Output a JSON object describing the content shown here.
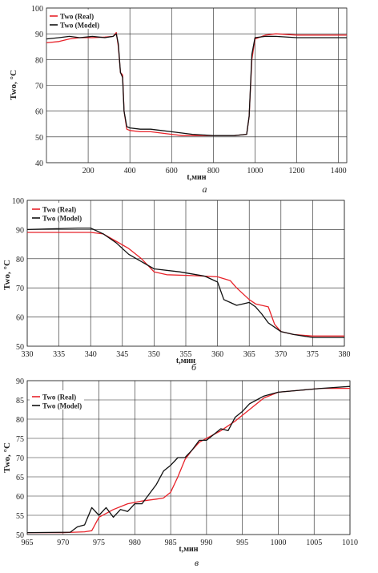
{
  "chart_data": [
    {
      "type": "line",
      "panel_label": "а",
      "xlabel": "t,мин",
      "ylabel": "Two, °C",
      "xlim": [
        0,
        1440
      ],
      "ylim": [
        40,
        100
      ],
      "xticks": [
        "200",
        "400",
        "600",
        "800",
        "1000",
        "1200",
        "1400"
      ],
      "yticks": [
        "40",
        "50",
        "60",
        "70",
        "80",
        "90",
        "100"
      ],
      "legend": "top-left",
      "series": [
        {
          "name": "Two (Real)",
          "color": "#e8232a",
          "x": [
            0,
            60,
            110,
            160,
            220,
            280,
            320,
            335,
            345,
            355,
            365,
            372,
            385,
            400,
            450,
            500,
            550,
            600,
            650,
            700,
            800,
            900,
            960,
            972,
            985,
            1000,
            1050,
            1100,
            1200,
            1300,
            1440
          ],
          "y": [
            86.5,
            87,
            88,
            88.5,
            88.5,
            88.7,
            89,
            90.5,
            85,
            75,
            74,
            60,
            53,
            52.5,
            52,
            52,
            51.5,
            51,
            50.5,
            50.5,
            50.5,
            50.5,
            51,
            58,
            80,
            88,
            89.5,
            90,
            89.5,
            89.5,
            89.5
          ]
        },
        {
          "name": "Two (Model)",
          "color": "#111111",
          "x": [
            0,
            60,
            110,
            160,
            220,
            280,
            320,
            335,
            345,
            355,
            365,
            372,
            385,
            400,
            450,
            500,
            550,
            600,
            650,
            700,
            800,
            900,
            960,
            972,
            985,
            1000,
            1050,
            1100,
            1200,
            1300,
            1440
          ],
          "y": [
            88,
            88.5,
            89,
            88.5,
            89,
            88.5,
            89,
            90,
            86,
            75,
            73,
            60,
            54,
            53.5,
            53,
            53,
            52.5,
            52,
            51.5,
            51,
            50.5,
            50.5,
            51,
            58,
            82,
            88.5,
            89,
            89,
            88.5,
            88.5,
            88.5
          ]
        }
      ]
    },
    {
      "type": "line",
      "panel_label": "б",
      "xlabel": "t,мин",
      "ylabel": "Two, °C",
      "xlim": [
        330,
        380
      ],
      "ylim": [
        50,
        100
      ],
      "xticks": [
        "330",
        "335",
        "340",
        "345",
        "350",
        "355",
        "360",
        "365",
        "370",
        "375",
        "380"
      ],
      "yticks": [
        "50",
        "60",
        "70",
        "80",
        "90",
        "100"
      ],
      "legend": "top-left",
      "series": [
        {
          "name": "Two (Real)",
          "color": "#e8232a",
          "x": [
            330,
            340,
            342,
            344,
            346,
            348,
            350,
            352,
            356,
            360,
            362,
            363,
            365,
            366,
            368,
            369,
            370,
            372,
            375,
            380
          ],
          "y": [
            89,
            89,
            88.5,
            86,
            83.5,
            80,
            75.5,
            74.5,
            74.2,
            73.8,
            72.5,
            70,
            66,
            64.5,
            63.5,
            57.5,
            55,
            54,
            53.5,
            53.5
          ]
        },
        {
          "name": "Two (Model)",
          "color": "#111111",
          "x": [
            330,
            338,
            340,
            342,
            344,
            346,
            348,
            350,
            354,
            358,
            360,
            361,
            362,
            363,
            364,
            365,
            366,
            367,
            368,
            369,
            370,
            372,
            375,
            380
          ],
          "y": [
            90,
            90.5,
            90.5,
            88.5,
            85.5,
            81.5,
            79,
            76.5,
            75.5,
            74,
            72,
            66,
            65,
            64,
            64.5,
            65,
            63.5,
            61,
            58,
            56.5,
            55,
            54,
            53,
            53
          ]
        }
      ]
    },
    {
      "type": "line",
      "panel_label": "в",
      "xlabel": "t,мин",
      "ylabel": "Two, °C",
      "xlim": [
        965,
        1010
      ],
      "ylim": [
        50,
        90
      ],
      "xticks": [
        "965",
        "970",
        "975",
        "980",
        "985",
        "990",
        "995",
        "1000",
        "1005",
        "1010"
      ],
      "yticks": [
        "50",
        "55",
        "60",
        "65",
        "70",
        "75",
        "80",
        "85",
        "90"
      ],
      "legend": "top-left",
      "series": [
        {
          "name": "Two (Real)",
          "color": "#e8232a",
          "x": [
            965,
            970,
            973,
            974,
            975,
            977,
            979,
            981,
            983,
            984,
            985,
            986,
            987,
            988,
            989,
            990,
            992,
            994,
            996,
            998,
            1000,
            1003,
            1006,
            1010
          ],
          "y": [
            50.5,
            50.5,
            50.7,
            51,
            54.5,
            56.5,
            58,
            58.7,
            59.2,
            59.5,
            61,
            65,
            69.5,
            72,
            74,
            75,
            77,
            79.5,
            82.5,
            85.5,
            87,
            87.5,
            88,
            88
          ]
        },
        {
          "name": "Two (Model)",
          "color": "#111111",
          "x": [
            965,
            971,
            972,
            973,
            974,
            975,
            976,
            977,
            978,
            979,
            980,
            981,
            982,
            983,
            984,
            985,
            986,
            987,
            988,
            989,
            990,
            991,
            992,
            993,
            994,
            995,
            996,
            997,
            998,
            999,
            1000,
            1003,
            1006,
            1010
          ],
          "y": [
            50.5,
            50.6,
            52,
            52.5,
            57,
            55,
            57,
            54.5,
            56.5,
            56,
            58,
            58,
            60.5,
            63,
            66.5,
            68,
            70,
            70,
            72,
            74.5,
            74.5,
            76,
            77.5,
            77,
            80.5,
            82,
            84,
            85,
            86,
            86.5,
            87,
            87.5,
            88,
            88.5
          ]
        }
      ]
    }
  ]
}
